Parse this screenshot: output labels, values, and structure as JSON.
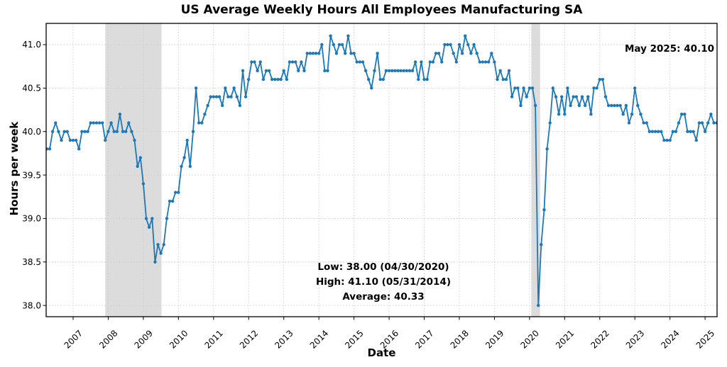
{
  "chart_data": {
    "type": "line",
    "title": "US Average Weekly Hours All Employees Manufacturing SA",
    "xlabel": "Date",
    "ylabel": "Hours per week",
    "x_start": "2006-04",
    "x_end": "2025-05",
    "frequency": "monthly",
    "values": [
      39.8,
      39.8,
      40.0,
      40.1,
      40.0,
      39.9,
      40.0,
      40.0,
      39.9,
      39.9,
      39.9,
      39.8,
      40.0,
      40.0,
      40.0,
      40.1,
      40.1,
      40.1,
      40.1,
      40.1,
      39.9,
      40.0,
      40.1,
      40.0,
      40.0,
      40.2,
      40.0,
      40.0,
      40.1,
      40.0,
      39.9,
      39.6,
      39.7,
      39.4,
      39.0,
      38.9,
      39.0,
      38.5,
      38.7,
      38.6,
      38.7,
      39.0,
      39.2,
      39.2,
      39.3,
      39.3,
      39.6,
      39.7,
      39.9,
      39.6,
      40.0,
      40.5,
      40.1,
      40.1,
      40.2,
      40.3,
      40.4,
      40.4,
      40.4,
      40.4,
      40.3,
      40.5,
      40.4,
      40.4,
      40.5,
      40.4,
      40.3,
      40.7,
      40.4,
      40.6,
      40.8,
      40.8,
      40.7,
      40.8,
      40.6,
      40.7,
      40.7,
      40.6,
      40.6,
      40.6,
      40.6,
      40.7,
      40.6,
      40.8,
      40.8,
      40.8,
      40.7,
      40.8,
      40.7,
      40.9,
      40.9,
      40.9,
      40.9,
      40.9,
      41.0,
      40.7,
      40.7,
      41.1,
      41.0,
      40.9,
      41.0,
      41.0,
      40.9,
      41.1,
      40.9,
      40.9,
      40.8,
      40.8,
      40.8,
      40.7,
      40.6,
      40.5,
      40.7,
      40.9,
      40.6,
      40.6,
      40.7,
      40.7,
      40.7,
      40.7,
      40.7,
      40.7,
      40.7,
      40.7,
      40.7,
      40.7,
      40.8,
      40.6,
      40.8,
      40.6,
      40.6,
      40.8,
      40.8,
      40.9,
      40.9,
      40.8,
      41.0,
      41.0,
      41.0,
      40.9,
      40.8,
      41.0,
      40.9,
      41.1,
      41.0,
      40.9,
      41.0,
      40.9,
      40.8,
      40.8,
      40.8,
      40.8,
      40.9,
      40.8,
      40.6,
      40.7,
      40.6,
      40.6,
      40.7,
      40.4,
      40.5,
      40.5,
      40.3,
      40.5,
      40.4,
      40.5,
      40.5,
      40.3,
      38.0,
      38.7,
      39.1,
      39.8,
      40.1,
      40.5,
      40.4,
      40.2,
      40.4,
      40.2,
      40.5,
      40.3,
      40.4,
      40.4,
      40.3,
      40.4,
      40.3,
      40.4,
      40.2,
      40.5,
      40.5,
      40.6,
      40.6,
      40.4,
      40.3,
      40.3,
      40.3,
      40.3,
      40.3,
      40.2,
      40.3,
      40.1,
      40.2,
      40.5,
      40.3,
      40.2,
      40.1,
      40.1,
      40.0,
      40.0,
      40.0,
      40.0,
      40.0,
      39.9,
      39.9,
      39.9,
      40.0,
      40.0,
      40.1,
      40.2,
      40.2,
      40.0,
      40.0,
      40.0,
      39.9,
      40.1,
      40.1,
      40.0,
      40.1,
      40.2,
      40.1,
      40.1
    ],
    "ylim": [
      37.87,
      41.24
    ],
    "yticks": [
      38.0,
      38.5,
      39.0,
      39.5,
      40.0,
      40.5,
      41.0
    ],
    "xticks_years": [
      2007,
      2008,
      2009,
      2010,
      2011,
      2012,
      2013,
      2014,
      2015,
      2016,
      2017,
      2018,
      2019,
      2020,
      2021,
      2022,
      2023,
      2024,
      2025
    ],
    "grid": true,
    "legend": "none",
    "line_color": "#1f77b4",
    "band_color": "#dcdcdc",
    "grid_color": "#c9c9c9",
    "recession_bands": [
      {
        "label": "2008-2009 recession",
        "start_index": 20.0,
        "end_index": 39.2
      },
      {
        "label": "2020 recession",
        "start_index": 165.6,
        "end_index": 168.6
      }
    ],
    "annotations": {
      "latest": "May 2025: 40.10",
      "low": "Low: 38.00 (04/30/2020)",
      "high": "High: 41.10 (05/31/2014)",
      "average": "Average: 40.33"
    }
  }
}
